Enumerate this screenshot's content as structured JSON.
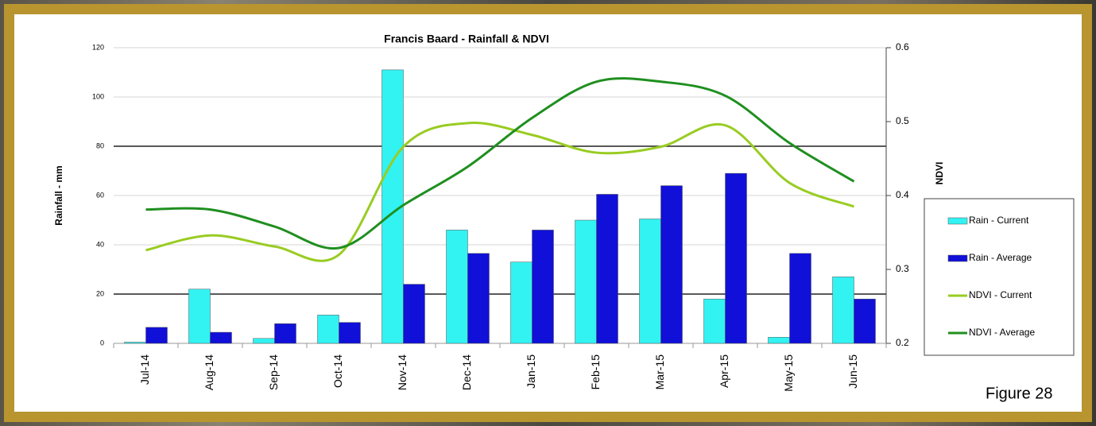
{
  "chart_data": {
    "type": "bar_line",
    "title": "Francis Baard - Rainfall & NDVI",
    "ylabel": "Rainfall - mm",
    "y2label": "NDVI",
    "annotation": "Figure 28",
    "categories": [
      "Jul-14",
      "Aug-14",
      "Sep-14",
      "Oct-14",
      "Nov-14",
      "Dec-14",
      "Jan-15",
      "Feb-15",
      "Mar-15",
      "Apr-15",
      "May-15",
      "Jun-15"
    ],
    "series": [
      {
        "name": "Rain - Current",
        "kind": "bar",
        "color": "#33f2f2",
        "values": [
          0.5,
          22,
          2,
          11.5,
          111,
          46,
          33,
          50,
          50.5,
          18,
          2.5,
          27
        ]
      },
      {
        "name": "Rain - Average",
        "kind": "bar",
        "color": "#1010d8",
        "values": [
          6.5,
          4.5,
          8,
          8.5,
          24,
          36.5,
          46,
          60.5,
          64,
          69,
          36.5,
          18
        ]
      },
      {
        "name": "NDVI - Current",
        "kind": "line",
        "axis": "y2",
        "color": "#99cc22",
        "values": [
          0.326,
          0.346,
          0.331,
          0.32,
          0.466,
          0.498,
          0.482,
          0.458,
          0.466,
          0.495,
          0.417,
          0.385
        ]
      },
      {
        "name": "NDVI - Average",
        "kind": "line",
        "axis": "y2",
        "color": "#1f8f1f",
        "values": [
          0.381,
          0.381,
          0.358,
          0.329,
          0.387,
          0.439,
          0.505,
          0.554,
          0.554,
          0.535,
          0.471,
          0.419
        ]
      }
    ],
    "ylim": [
      0,
      120
    ],
    "yticks": [
      0,
      20,
      40,
      60,
      80,
      100,
      120
    ],
    "y2lim": [
      0.2,
      0.6
    ],
    "y2ticks": [
      0.2,
      0.3,
      0.4,
      0.5,
      0.6
    ],
    "grid": true,
    "hlines": [
      20,
      80
    ],
    "legend": "right"
  }
}
